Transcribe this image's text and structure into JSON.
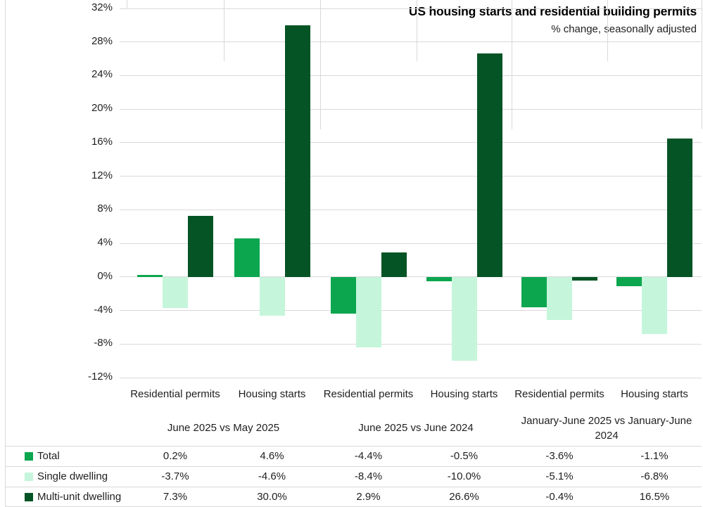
{
  "chart": {
    "title": "US housing starts and residential building permits",
    "subtitle": "% change, seasonally adjusted"
  },
  "colors": {
    "total": "#0CA64F",
    "single_dwelling": "#C5F6DB",
    "multi_unit_dwelling": "#055426",
    "gridline": "#D9D9D9",
    "table_line": "#D9D9D9",
    "text": "#1F1F1F"
  },
  "chart_data": {
    "type": "bar",
    "title": "US housing starts and residential building permits",
    "subtitle": "% change, seasonally adjusted",
    "y_axis": {
      "min": -12,
      "max": 32,
      "step": 4,
      "tick_labels": [
        "32%",
        "28%",
        "24%",
        "20%",
        "16%",
        "12%",
        "8%",
        "4%",
        "0%",
        "-4%",
        "-8%",
        "-12%"
      ]
    },
    "grid": true,
    "legend_position": "bottom-left-table",
    "categories": [
      "Residential permits",
      "Housing starts",
      "Residential permits",
      "Housing starts",
      "Residential permits",
      "Housing starts"
    ],
    "group_labels": [
      "June 2025 vs May 2025",
      "June 2025 vs June 2024",
      "January-June 2025 vs January-June 2024"
    ],
    "series": [
      {
        "name": "Total",
        "color": "#0CA64F",
        "values": [
          0.2,
          4.6,
          -4.4,
          -0.5,
          -3.6,
          -1.1
        ]
      },
      {
        "name": "Single dwelling",
        "color": "#C5F6DB",
        "values": [
          -3.7,
          -4.6,
          -8.4,
          -10.0,
          -5.1,
          -6.8
        ]
      },
      {
        "name": "Multi-unit dwelling",
        "color": "#055426",
        "values": [
          7.3,
          30.0,
          2.9,
          26.6,
          -0.4,
          16.5
        ]
      }
    ]
  },
  "table": {
    "rows": [
      {
        "label": "Total",
        "values": [
          "0.2%",
          "4.6%",
          "-4.4%",
          "-0.5%",
          "-3.6%",
          "-1.1%"
        ]
      },
      {
        "label": "Single dwelling",
        "values": [
          "-3.7%",
          "-4.6%",
          "-8.4%",
          "-10.0%",
          "-5.1%",
          "-6.8%"
        ]
      },
      {
        "label": "Multi-unit dwelling",
        "values": [
          "7.3%",
          "30.0%",
          "2.9%",
          "26.6%",
          "-0.4%",
          "16.5%"
        ]
      }
    ]
  }
}
